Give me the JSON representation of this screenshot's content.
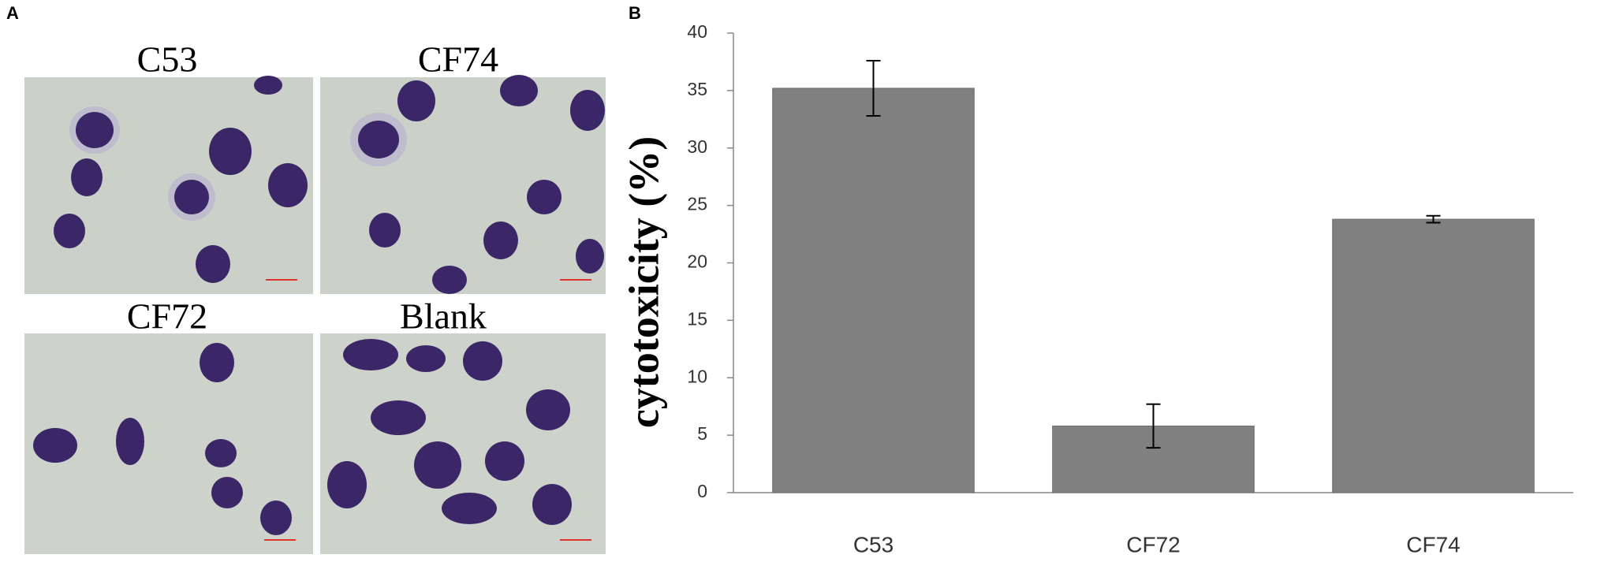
{
  "panel_a": {
    "label": "A",
    "images": [
      {
        "label": "C53"
      },
      {
        "label": "CF74"
      },
      {
        "label": "CF72"
      },
      {
        "label": "Blank"
      }
    ]
  },
  "chart_data": {
    "type": "bar",
    "panel_label": "B",
    "y_label": "cytotoxicity (%)",
    "categories": [
      "C53",
      "CF72",
      "CF74"
    ],
    "values": [
      35.2,
      5.8,
      23.8
    ],
    "errors": [
      2.4,
      1.9,
      0.3
    ],
    "color": "#808080",
    "ylim": [
      0,
      40
    ],
    "yticks": [
      0,
      5,
      10,
      15,
      20,
      25,
      30,
      35,
      40
    ],
    "grid": false
  }
}
